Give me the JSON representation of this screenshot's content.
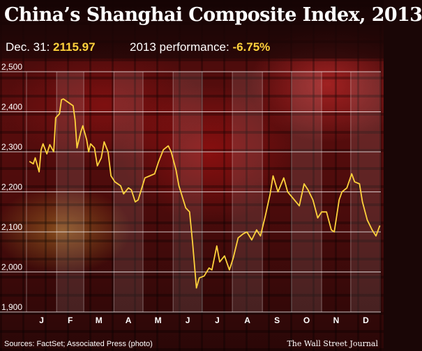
{
  "header": {
    "title": "China’s Shanghai Composite Index, 2013",
    "close_label": "Dec. 31:",
    "close_value": "2115.97",
    "performance_label": "2013 performance:",
    "performance_value": "-6.75%"
  },
  "footer": {
    "source": "Sources: FactSet; Associated Press (photo)",
    "publisher": "The Wall Street Journal"
  },
  "colors": {
    "line": "#ffd23c",
    "highlight": "#ffd23c",
    "text": "#ffffff"
  },
  "chart_data": {
    "type": "line",
    "title": "China’s Shanghai Composite Index, 2013",
    "xlabel": "",
    "ylabel": "",
    "ylim": [
      1900,
      2500
    ],
    "yticks": [
      1900,
      2000,
      2100,
      2200,
      2300,
      2400,
      2500
    ],
    "ytick_labels": [
      "1,900",
      "2,000",
      "2,100",
      "2,200",
      "2,300",
      "2,400",
      "2,500"
    ],
    "months": [
      "J",
      "F",
      "M",
      "A",
      "M",
      "J",
      "J",
      "A",
      "S",
      "O",
      "N",
      "D"
    ],
    "grid": true,
    "legend": "none",
    "series": [
      {
        "x": [
          "2013-01-04",
          "2013-01-08",
          "2013-01-10",
          "2013-01-14",
          "2013-01-16",
          "2013-01-18",
          "2013-01-22",
          "2013-01-25",
          "2013-01-29",
          "2013-01-31",
          "2013-02-04",
          "2013-02-06",
          "2013-02-08",
          "2013-02-18",
          "2013-02-20",
          "2013-02-22",
          "2013-02-26",
          "2013-02-28",
          "2013-03-04",
          "2013-03-06",
          "2013-03-08",
          "2013-03-12",
          "2013-03-15",
          "2013-03-19",
          "2013-03-22",
          "2013-03-26",
          "2013-03-29",
          "2013-04-02",
          "2013-04-08",
          "2013-04-11",
          "2013-04-16",
          "2013-04-19",
          "2013-04-23",
          "2013-04-26",
          "2013-05-03",
          "2013-05-08",
          "2013-05-13",
          "2013-05-17",
          "2013-05-22",
          "2013-05-27",
          "2013-05-30",
          "2013-06-04",
          "2013-06-07",
          "2013-06-14",
          "2013-06-18",
          "2013-06-21",
          "2013-06-25",
          "2013-06-28",
          "2013-07-03",
          "2013-07-08",
          "2013-07-11",
          "2013-07-16",
          "2013-07-19",
          "2013-07-24",
          "2013-07-29",
          "2013-08-02",
          "2013-08-07",
          "2013-08-12",
          "2013-08-16",
          "2013-08-21",
          "2013-08-26",
          "2013-08-30",
          "2013-09-04",
          "2013-09-09",
          "2013-09-12",
          "2013-09-17",
          "2013-09-23",
          "2013-09-27",
          "2013-10-09",
          "2013-10-14",
          "2013-10-18",
          "2013-10-23",
          "2013-10-28",
          "2013-11-01",
          "2013-11-06",
          "2013-11-11",
          "2013-11-14",
          "2013-11-19",
          "2013-11-22",
          "2013-11-27",
          "2013-12-02",
          "2013-12-05",
          "2013-12-10",
          "2013-12-13",
          "2013-12-18",
          "2013-12-23",
          "2013-12-27",
          "2013-12-31"
        ],
        "values": [
          2276,
          2270,
          2285,
          2250,
          2305,
          2320,
          2295,
          2318,
          2300,
          2385,
          2395,
          2430,
          2432,
          2415,
          2380,
          2310,
          2350,
          2365,
          2330,
          2300,
          2320,
          2310,
          2265,
          2285,
          2325,
          2300,
          2240,
          2225,
          2215,
          2195,
          2210,
          2205,
          2175,
          2180,
          2235,
          2240,
          2245,
          2275,
          2305,
          2315,
          2300,
          2255,
          2215,
          2160,
          2150,
          2075,
          1960,
          1985,
          1990,
          2010,
          2005,
          2065,
          2025,
          2040,
          2005,
          2035,
          2085,
          2095,
          2100,
          2080,
          2105,
          2090,
          2140,
          2195,
          2240,
          2200,
          2235,
          2200,
          2165,
          2220,
          2205,
          2180,
          2135,
          2150,
          2150,
          2105,
          2100,
          2180,
          2200,
          2210,
          2245,
          2225,
          2220,
          2175,
          2130,
          2105,
          2090,
          2116
        ]
      }
    ]
  }
}
